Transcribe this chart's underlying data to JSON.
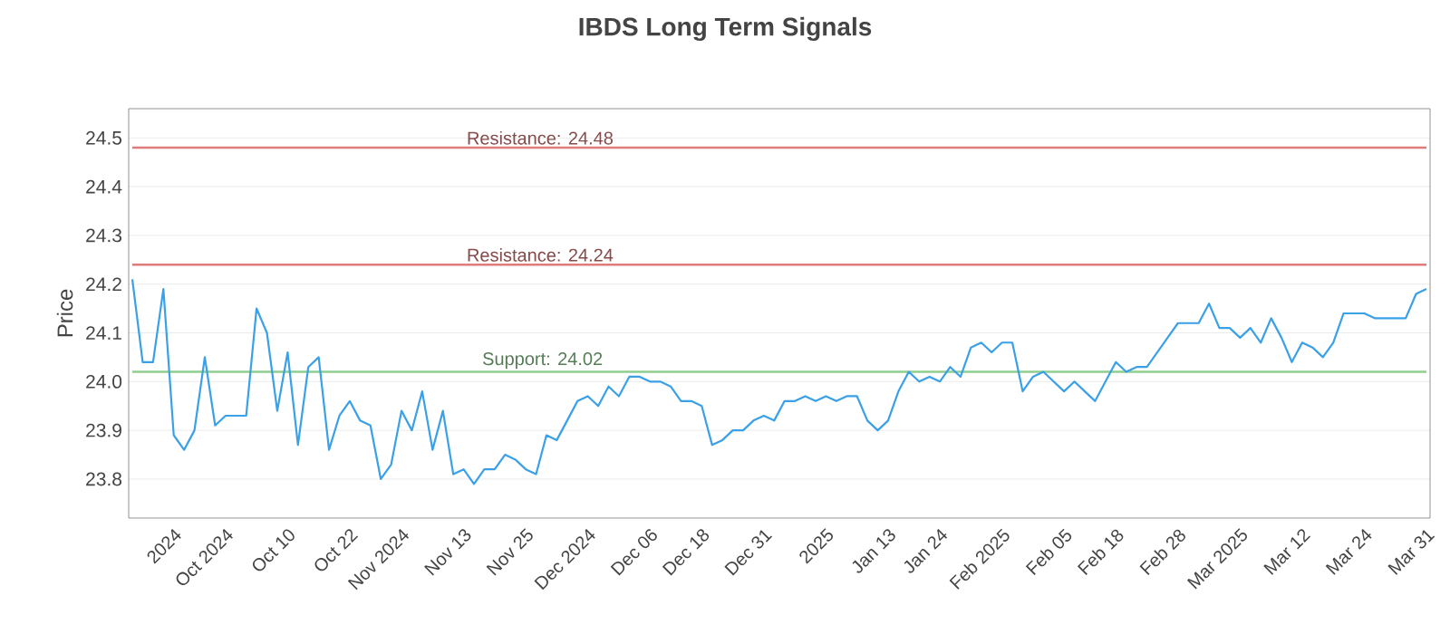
{
  "chart_data": {
    "type": "line",
    "title": "IBDS Long Term Signals",
    "ylabel": "Price",
    "categories": [
      null,
      null,
      null,
      null,
      "2024",
      null,
      null,
      null,
      null,
      "Oct 2024",
      null,
      null,
      null,
      null,
      null,
      "Oct 10",
      null,
      null,
      null,
      null,
      null,
      "Oct 22",
      null,
      null,
      null,
      null,
      "Nov 2024",
      null,
      null,
      null,
      null,
      null,
      "Nov 13",
      null,
      null,
      null,
      null,
      null,
      "Nov 25",
      null,
      null,
      null,
      null,
      null,
      "Dec 2024",
      null,
      null,
      null,
      null,
      null,
      "Dec 06",
      null,
      null,
      null,
      null,
      "Dec 18",
      null,
      null,
      null,
      null,
      null,
      "Dec 31",
      null,
      null,
      null,
      null,
      null,
      "2025",
      null,
      null,
      null,
      null,
      null,
      "Jan 13",
      null,
      null,
      null,
      null,
      "Jan 24",
      null,
      null,
      null,
      null,
      null,
      "Feb 2025",
      null,
      null,
      null,
      null,
      null,
      "Feb 05",
      null,
      null,
      null,
      null,
      "Feb 18",
      null,
      null,
      null,
      null,
      null,
      "Feb 28",
      null,
      null,
      null,
      null,
      null,
      "Mar 2025",
      null,
      null,
      null,
      null,
      null,
      "Mar 12",
      null,
      null,
      null,
      null,
      null,
      "Mar 24",
      null,
      null,
      null,
      null,
      null,
      "Mar 31"
    ],
    "series": [
      {
        "color": "#3aa0e8",
        "values": [
          24.21,
          24.04,
          24.04,
          24.19,
          23.89,
          23.86,
          23.9,
          24.05,
          23.91,
          23.93,
          23.93,
          23.93,
          24.15,
          24.1,
          23.94,
          24.06,
          23.87,
          24.03,
          24.05,
          23.86,
          23.93,
          23.96,
          23.92,
          23.91,
          23.8,
          23.83,
          23.94,
          23.9,
          23.98,
          23.86,
          23.94,
          23.81,
          23.82,
          23.79,
          23.82,
          23.82,
          23.85,
          23.84,
          23.82,
          23.81,
          23.89,
          23.88,
          23.92,
          23.96,
          23.97,
          23.95,
          23.99,
          23.97,
          24.01,
          24.01,
          24.0,
          24.0,
          23.99,
          23.96,
          23.96,
          23.95,
          23.87,
          23.88,
          23.9,
          23.9,
          23.92,
          23.93,
          23.92,
          23.96,
          23.96,
          23.97,
          23.96,
          23.97,
          23.96,
          23.97,
          23.97,
          23.92,
          23.9,
          23.92,
          23.98,
          24.02,
          24.0,
          24.01,
          24.0,
          24.03,
          24.01,
          24.07,
          24.08,
          24.06,
          24.08,
          24.08,
          23.98,
          24.01,
          24.02,
          24.0,
          23.98,
          24.0,
          23.98,
          23.96,
          24.0,
          24.04,
          24.02,
          24.03,
          24.03,
          24.06,
          24.09,
          24.12,
          24.12,
          24.12,
          24.16,
          24.11,
          24.11,
          24.09,
          24.11,
          24.08,
          24.13,
          24.09,
          24.04,
          24.08,
          24.07,
          24.05,
          24.08,
          24.14,
          24.14,
          24.14,
          24.13,
          24.13,
          24.13,
          24.13,
          24.18,
          24.19
        ]
      }
    ],
    "ylim": [
      23.72,
      24.56
    ],
    "yticks": [
      23.8,
      23.9,
      {
        "value": 24,
        "label": "24.0"
      },
      24.1,
      24.2,
      24.3,
      24.4,
      24.5
    ],
    "grid": "y",
    "marker": "none",
    "line_style": "solid",
    "ref_lines": [
      {
        "axis": "y",
        "value": 24.48,
        "label": "Resistance: 24.48",
        "color": "#e07b7b"
      },
      {
        "axis": "y",
        "value": 24.24,
        "label": "Resistance: 24.24",
        "color": "#e07b7b"
      },
      {
        "axis": "y",
        "value": 24.02,
        "label": "Support: 24.02",
        "color": "#8fce8f"
      }
    ]
  }
}
